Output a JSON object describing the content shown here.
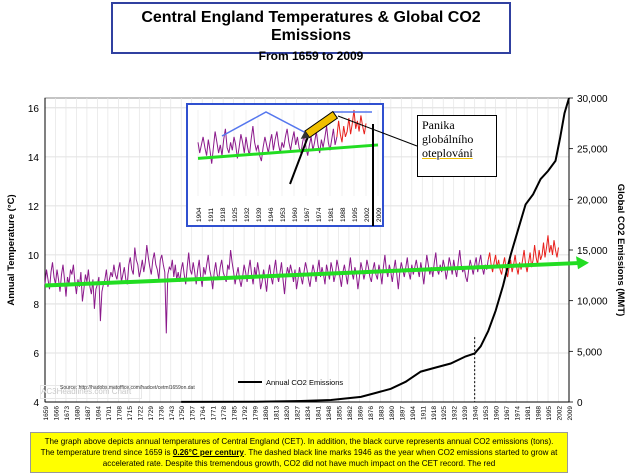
{
  "title": "Central England Temperatures & Global CO2 Emissions",
  "subtitle": "From 1659 to 2009",
  "chart_data": {
    "type": "line",
    "title": "Central England Temperatures & Global CO2 Emissions",
    "subtitle": "From 1659 to 2009",
    "ylabel": "Annual Temperature (°C)",
    "y2label": "Global CO2 Emissions (MMT)",
    "ylim": [
      4,
      16.4
    ],
    "y2lim": [
      0,
      30000
    ],
    "yticks": [
      "4",
      "6",
      "8",
      "10",
      "12",
      "14",
      "16"
    ],
    "y2ticks": [
      "0",
      "5,000",
      "10,000",
      "15,000",
      "20,000",
      "25,000",
      "30,000"
    ],
    "xlim": [
      1659,
      2009
    ],
    "xticks": [
      "1659",
      "1666",
      "1673",
      "1680",
      "1687",
      "1694",
      "1701",
      "1708",
      "1715",
      "1722",
      "1729",
      "1736",
      "1743",
      "1750",
      "1757",
      "1764",
      "1771",
      "1778",
      "1785",
      "1792",
      "1799",
      "1806",
      "1813",
      "1820",
      "1827",
      "1834",
      "1841",
      "1848",
      "1855",
      "1862",
      "1869",
      "1876",
      "1883",
      "1890",
      "1897",
      "1904",
      "1911",
      "1918",
      "1925",
      "1932",
      "1939",
      "1946",
      "1953",
      "1960",
      "1967",
      "1974",
      "1981",
      "1988",
      "1995",
      "2002",
      "2009"
    ],
    "grid": true,
    "legend": "Annual CO2 Emissions",
    "trend": {
      "start": 8.75,
      "end": 9.66,
      "rate_text": "0.26°C per century"
    },
    "marker_year": 1946,
    "temperature_series_name": "",
    "co2_series": {
      "name": "Annual CO2 Emissions",
      "x": [
        1750,
        1800,
        1830,
        1850,
        1870,
        1880,
        1890,
        1900,
        1910,
        1920,
        1930,
        1940,
        1946,
        1950,
        1955,
        1960,
        1965,
        1970,
        1975,
        1980,
        1985,
        1990,
        1995,
        2000,
        2003,
        2006,
        2009
      ],
      "values": [
        10,
        30,
        100,
        200,
        500,
        900,
        1300,
        2000,
        3000,
        3400,
        3800,
        4500,
        4800,
        5500,
        7000,
        9000,
        11500,
        14500,
        17000,
        19500,
        20500,
        22000,
        22800,
        23800,
        26000,
        28500,
        30000
      ]
    },
    "temperature_series": {
      "x_start": 1659,
      "values": [
        8.8,
        9.4,
        9.0,
        8.6,
        9.3,
        9.7,
        9.1,
        8.8,
        9.4,
        9.0,
        8.5,
        9.2,
        9.6,
        9.0,
        8.3,
        9.1,
        8.8,
        9.4,
        9.2,
        9.6,
        8.9,
        8.4,
        9.0,
        8.7,
        9.3,
        8.1,
        8.6,
        9.2,
        8.9,
        9.4,
        8.7,
        8.4,
        9.0,
        7.8,
        8.6,
        8.8,
        9.1,
        7.3,
        8.5,
        8.8,
        9.0,
        9.4,
        8.7,
        9.0,
        9.3,
        9.1,
        9.6,
        9.2,
        9.0,
        9.4,
        9.7,
        8.9,
        9.2,
        9.5,
        9.0,
        8.8,
        9.6,
        9.9,
        9.4,
        9.2,
        10.3,
        9.8,
        9.6,
        9.1,
        9.4,
        9.8,
        9.3,
        9.7,
        10.4,
        9.9,
        9.5,
        9.2,
        9.8,
        10.1,
        9.6,
        9.4,
        9.0,
        9.8,
        10.0,
        9.6,
        9.3,
        6.8,
        9.2,
        9.5,
        9.4,
        9.8,
        9.1,
        9.6,
        9.0,
        9.3,
        8.9,
        9.4,
        9.7,
        9.2,
        8.8,
        9.5,
        10.1,
        9.4,
        9.2,
        9.7,
        9.3,
        8.8,
        9.4,
        9.8,
        9.1,
        8.7,
        9.5,
        9.2,
        9.6,
        10.0,
        9.4,
        9.1,
        8.6,
        9.3,
        9.7,
        9.2,
        9.0,
        9.5,
        9.8,
        9.3,
        9.1,
        8.9,
        9.6,
        9.4,
        10.2,
        9.7,
        9.3,
        8.8,
        9.2,
        9.5,
        9.0,
        8.7,
        9.1,
        9.6,
        9.3,
        8.9,
        9.4,
        9.8,
        9.2,
        8.8,
        9.5,
        9.1,
        9.7,
        9.3,
        8.6,
        8.9,
        9.4,
        9.0,
        8.5,
        9.2,
        9.6,
        9.1,
        8.8,
        9.4,
        9.8,
        9.2,
        8.9,
        9.3,
        9.7,
        9.0,
        8.4,
        9.1,
        9.5,
        9.2,
        9.6,
        9.3,
        8.9,
        9.4,
        8.6,
        9.0,
        9.5,
        9.1,
        8.8,
        9.3,
        9.7,
        9.4,
        9.0,
        8.7,
        9.2,
        9.6,
        9.3,
        8.9,
        9.4,
        9.8,
        9.1,
        9.5,
        9.2,
        8.8,
        9.6,
        9.3,
        9.0,
        9.7,
        9.4,
        8.9,
        9.2,
        9.8,
        9.5,
        9.1,
        8.7,
        9.3,
        9.6,
        9.2,
        8.8,
        9.4,
        9.9,
        9.3,
        9.0,
        9.5,
        9.2,
        8.6,
        9.1,
        9.7,
        9.4,
        9.0,
        9.3,
        9.8,
        9.5,
        9.1,
        8.9,
        9.4,
        9.7,
        9.2,
        9.0,
        9.6,
        9.3,
        8.8,
        9.5,
        10.0,
        9.4,
        9.1,
        9.6,
        9.3,
        8.9,
        9.4,
        9.8,
        9.2,
        8.6,
        9.3,
        9.7,
        9.4,
        9.1,
        9.5,
        9.9,
        9.3,
        9.0,
        9.6,
        9.2,
        9.5,
        9.8,
        9.4,
        9.1,
        9.7,
        9.3,
        8.8,
        9.4,
        10.0,
        9.6,
        9.2,
        9.5,
        9.1,
        9.7,
        10.1,
        9.4,
        9.2,
        9.6,
        9.3,
        9.8,
        9.5,
        9.0,
        9.4,
        9.9,
        9.6,
        9.2,
        9.8,
        9.4,
        9.1,
        9.7,
        10.2,
        9.6,
        9.3,
        9.5,
        9.1,
        8.9,
        9.4,
        9.8,
        9.5,
        9.2,
        9.6,
        9.9,
        9.3,
        9.7,
        10.0,
        9.5,
        9.2,
        9.6,
        9.4,
        9.8,
        10.1,
        9.6,
        9.3,
        9.7,
        10.0,
        9.5,
        9.8,
        9.4,
        9.2,
        9.6,
        9.9,
        9.4,
        9.1,
        9.5,
        9.8,
        9.3,
        9.6,
        10.0,
        9.5,
        9.2,
        9.7,
        9.4,
        9.8,
        10.2,
        9.6,
        9.3,
        9.7,
        10.1,
        9.5,
        9.8,
        10.4,
        9.9,
        9.6,
        10.2,
        9.8,
        10.0,
        10.5,
        9.9,
        10.3,
        10.8,
        10.1,
        10.4,
        10.0,
        10.6,
        10.2,
        9.9,
        10.3
      ]
    },
    "inset": {
      "xticks": [
        "1904",
        "1911",
        "1918",
        "1925",
        "1932",
        "1939",
        "1946",
        "1953",
        "1960",
        "1967",
        "1974",
        "1981",
        "1988",
        "1995",
        "2002",
        "2009"
      ]
    }
  },
  "annotation": {
    "line1": "Panika",
    "line2": "globálního",
    "line3": "oteplování",
    "mark": "!"
  },
  "legend_label": "Annual CO2 Emissions",
  "source": "Source: http://hadobs.metoffice.com/hadcet/cetml1659on.dat",
  "watermark": "AC3Headlines.com Chart",
  "caption": {
    "part1": "The graph above depicts annual temperatures of Central England (CET). In addition, the black curve represents annual CO2 emissions (tons). The temperature trend since 1659 is ",
    "rate": "0.26°C per century",
    "part2": ". The dashed black line marks 1946 as the year when CO2 emissions started to grow at accelerated rate. Despite this tremendous growth, CO2 did not have much impact on the CET record. The red"
  },
  "colors": {
    "temp_early": "#8b1a8b",
    "temp_late": "#e8201c",
    "trend": "#22dd22",
    "co2": "#000000",
    "inset_border": "#3050d0",
    "caption_bg": "#ffff00",
    "pen": "#f0c000"
  }
}
